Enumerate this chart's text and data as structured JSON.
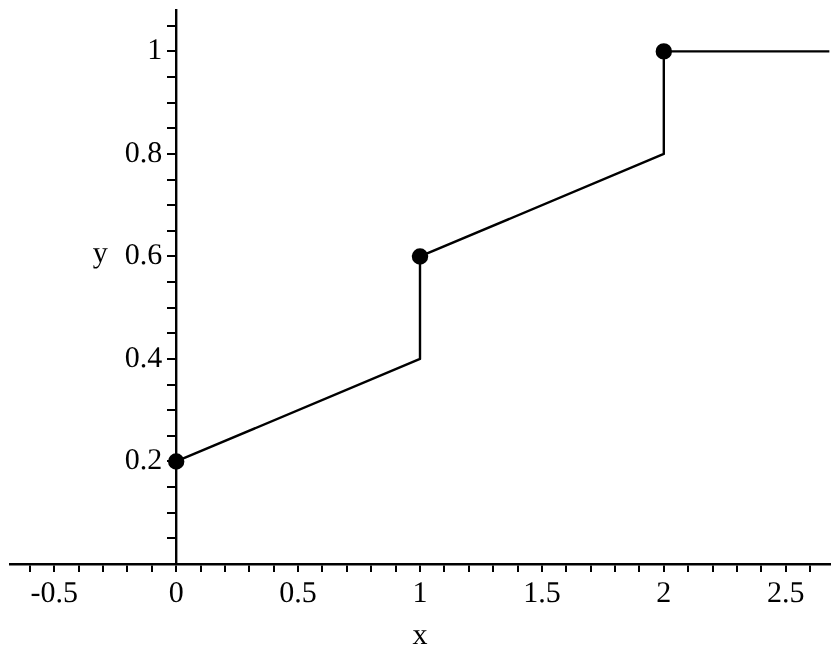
{
  "chart_data": {
    "type": "line",
    "xlabel": "x",
    "ylabel": "y",
    "xlim": [
      -0.68,
      2.68
    ],
    "ylim": [
      0,
      1.08
    ],
    "xticks": [
      {
        "value": -0.6,
        "label": null
      },
      -0.5,
      {
        "value": -0.4,
        "label": null
      },
      {
        "value": -0.3,
        "label": null
      },
      {
        "value": -0.2,
        "label": null
      },
      {
        "value": -0.1,
        "label": null
      },
      0,
      {
        "value": 0.1,
        "label": null
      },
      {
        "value": 0.2,
        "label": null
      },
      {
        "value": 0.3,
        "label": null
      },
      {
        "value": 0.4,
        "label": null
      },
      0.5,
      {
        "value": 0.6,
        "label": null
      },
      {
        "value": 0.7,
        "label": null
      },
      {
        "value": 0.8,
        "label": null
      },
      {
        "value": 0.9,
        "label": null
      },
      1,
      {
        "value": 1.1,
        "label": null
      },
      {
        "value": 1.2,
        "label": null
      },
      {
        "value": 1.3,
        "label": null
      },
      {
        "value": 1.4,
        "label": null
      },
      1.5,
      {
        "value": 1.6,
        "label": null
      },
      {
        "value": 1.7,
        "label": null
      },
      {
        "value": 1.8,
        "label": null
      },
      {
        "value": 1.9,
        "label": null
      },
      2,
      {
        "value": 2.1,
        "label": null
      },
      {
        "value": 2.2,
        "label": null
      },
      {
        "value": 2.3,
        "label": null
      },
      {
        "value": 2.4,
        "label": null
      },
      2.5,
      {
        "value": 2.6,
        "label": null
      }
    ],
    "yticks": [
      {
        "value": 0.05,
        "label": null
      },
      {
        "value": 0.1,
        "label": null
      },
      {
        "value": 0.15,
        "label": null
      },
      0.2,
      {
        "value": 0.25,
        "label": null
      },
      {
        "value": 0.3,
        "label": null
      },
      {
        "value": 0.35,
        "label": null
      },
      0.4,
      {
        "value": 0.45,
        "label": null
      },
      {
        "value": 0.5,
        "label": null
      },
      {
        "value": 0.55,
        "label": null
      },
      0.6,
      {
        "value": 0.65,
        "label": null
      },
      {
        "value": 0.7,
        "label": null
      },
      {
        "value": 0.75,
        "label": null
      },
      0.8,
      {
        "value": 0.85,
        "label": null
      },
      {
        "value": 0.9,
        "label": null
      },
      {
        "value": 0.95,
        "label": null
      },
      1,
      {
        "value": 1.05,
        "label": null
      }
    ],
    "grid": false,
    "legend": false,
    "series": [
      {
        "type": "line",
        "color": "#000000",
        "marker": "none",
        "x": [
          0,
          1,
          1,
          2,
          2,
          2.68
        ],
        "values": [
          0.2,
          0.4,
          0.6,
          0.8,
          1,
          1
        ]
      },
      {
        "type": "scatter",
        "color": "#000000",
        "marker": "circle",
        "x": [
          0,
          1,
          2
        ],
        "values": [
          0.2,
          0.6,
          1
        ]
      }
    ]
  }
}
